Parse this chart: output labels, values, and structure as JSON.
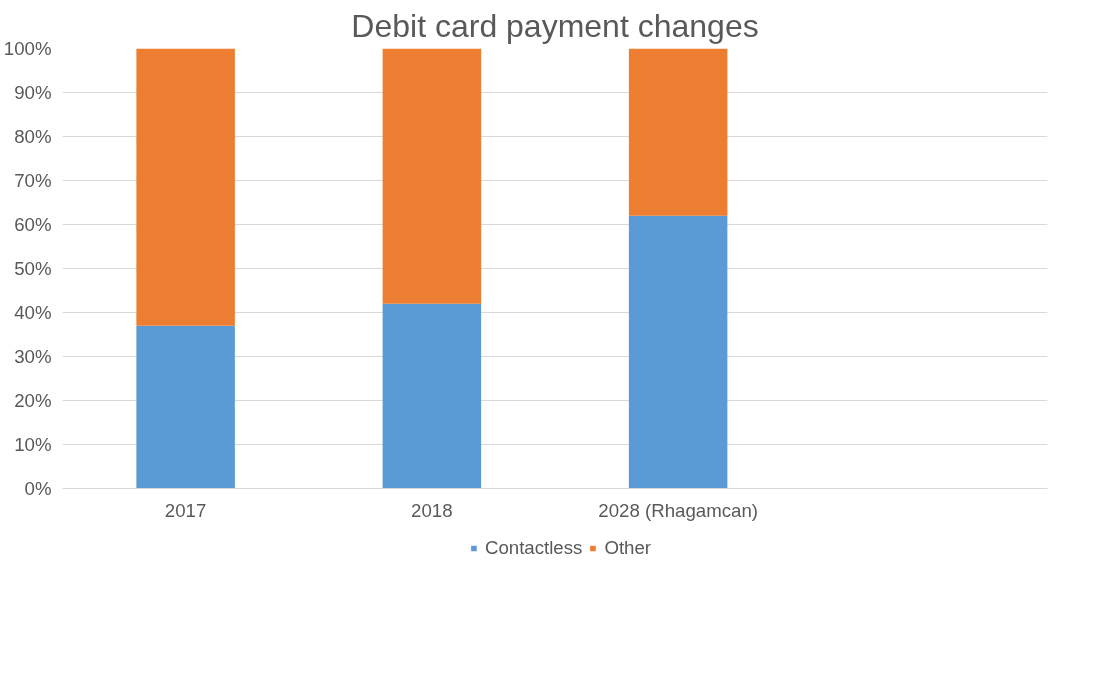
{
  "chart_data": {
    "type": "bar",
    "title": "Debit card payment changes",
    "categories": [
      "2017",
      "2018",
      "2028 (Rhagamcan)",
      null
    ],
    "stacked": true,
    "series": [
      {
        "name": "Contactless",
        "color": "#5b9bd5",
        "values": [
          37,
          42,
          62,
          null
        ]
      },
      {
        "name": "Other",
        "color": "#ed7d31",
        "values": [
          63,
          58,
          38,
          null
        ]
      }
    ],
    "ylim": [
      0,
      100
    ],
    "yticks": [
      {
        "value": 0,
        "label": "0%"
      },
      {
        "value": 10,
        "label": "10%"
      },
      {
        "value": 20,
        "label": "20%"
      },
      {
        "value": 30,
        "label": "30%"
      },
      {
        "value": 40,
        "label": "40%"
      },
      {
        "value": 50,
        "label": "50%"
      },
      {
        "value": 60,
        "label": "60%"
      },
      {
        "value": 70,
        "label": "70%"
      },
      {
        "value": 80,
        "label": "80%"
      },
      {
        "value": 90,
        "label": "90%"
      },
      {
        "value": 100,
        "label": "100%"
      }
    ],
    "grid": "y",
    "legend": "bottom"
  }
}
